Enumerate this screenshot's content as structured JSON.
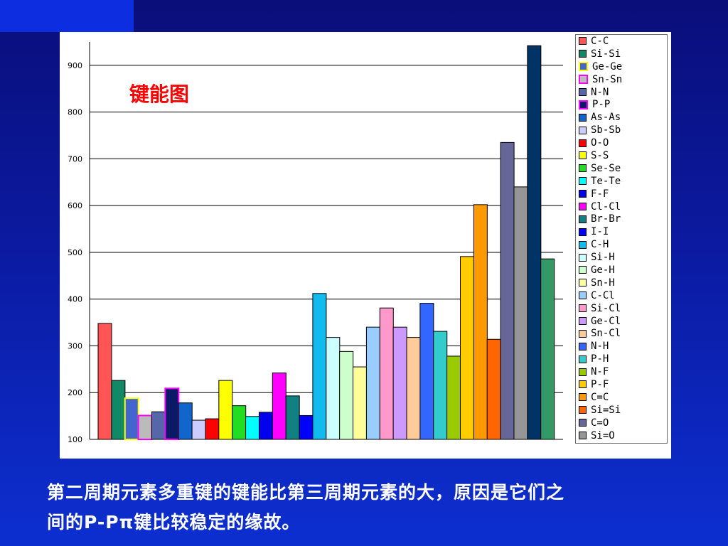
{
  "chart_data": {
    "type": "bar",
    "title": "键能图",
    "ylim": [
      100,
      950
    ],
    "yticks": [
      100,
      200,
      300,
      400,
      500,
      600,
      700,
      800,
      900
    ],
    "grid": true,
    "legend_placement": "right",
    "series": [
      {
        "name": "C-C",
        "value": 348,
        "color": "#ff5555",
        "border": "#000000"
      },
      {
        "name": "Si-Si",
        "value": 226,
        "color": "#118866",
        "border": "#000000"
      },
      {
        "name": "Ge-Ge",
        "value": 188,
        "color": "#4466cc",
        "border": "#ffff00"
      },
      {
        "name": "Sn-Sn",
        "value": 151,
        "color": "#bbbbbb",
        "border": "#ff00ff"
      },
      {
        "name": "N-N",
        "value": 159,
        "color": "#5566aa",
        "border": "#000000"
      },
      {
        "name": "P-P",
        "value": 209,
        "color": "#0a1a66",
        "border": "#ff00ff"
      },
      {
        "name": "As-As",
        "value": 178,
        "color": "#1166cc",
        "border": "#000000"
      },
      {
        "name": "Sb-Sb",
        "value": 141,
        "color": "#ccccff",
        "border": "#000000"
      },
      {
        "name": "O-O",
        "value": 144,
        "color": "#ff0000",
        "border": "#000000"
      },
      {
        "name": "S-S",
        "value": 226,
        "color": "#ffff00",
        "border": "#000000"
      },
      {
        "name": "Se-Se",
        "value": 172,
        "color": "#22dd22",
        "border": "#000000"
      },
      {
        "name": "Te-Te",
        "value": 149,
        "color": "#00ffff",
        "border": "#000000"
      },
      {
        "name": "F-F",
        "value": 158,
        "color": "#0000ee",
        "border": "#000000"
      },
      {
        "name": "Cl-Cl",
        "value": 242,
        "color": "#ff00ff",
        "border": "#000000"
      },
      {
        "name": "Br-Br",
        "value": 193,
        "color": "#118080",
        "border": "#000000"
      },
      {
        "name": "I-I",
        "value": 151,
        "color": "#0000ff",
        "border": "#000000"
      },
      {
        "name": "C-H",
        "value": 412,
        "color": "#11bbee",
        "border": "#000000"
      },
      {
        "name": "Si-H",
        "value": 318,
        "color": "#ccffff",
        "border": "#000000"
      },
      {
        "name": "Ge-H",
        "value": 288,
        "color": "#ccffcc",
        "border": "#000000"
      },
      {
        "name": "Sn-H",
        "value": 255,
        "color": "#ffff99",
        "border": "#000000"
      },
      {
        "name": "C-Cl",
        "value": 340,
        "color": "#99ccff",
        "border": "#000000"
      },
      {
        "name": "Si-Cl",
        "value": 381,
        "color": "#ff99cc",
        "border": "#000000"
      },
      {
        "name": "Ge-Cl",
        "value": 340,
        "color": "#cc99ff",
        "border": "#000000"
      },
      {
        "name": "Sn-Cl",
        "value": 318,
        "color": "#ffcc99",
        "border": "#000000"
      },
      {
        "name": "N-H",
        "value": 391,
        "color": "#3366ff",
        "border": "#000000"
      },
      {
        "name": "P-H",
        "value": 331,
        "color": "#33cccc",
        "border": "#000000"
      },
      {
        "name": "N-F",
        "value": 278,
        "color": "#99cc00",
        "border": "#000000"
      },
      {
        "name": "P-F",
        "value": 491,
        "color": "#ffcc00",
        "border": "#000000"
      },
      {
        "name": "C=C",
        "value": 602,
        "color": "#ff9900",
        "border": "#000000"
      },
      {
        "name": "Si=Si",
        "value": 314,
        "color": "#ff6600",
        "border": "#000000"
      },
      {
        "name": "C=O",
        "value": 735,
        "color": "#666699",
        "border": "#000000"
      },
      {
        "name": "Si=O",
        "value": 640,
        "color": "#969696",
        "border": "#000000"
      },
      {
        "name": "",
        "value": 942,
        "color": "#003366",
        "border": "#000000"
      },
      {
        "name": "",
        "value": 486,
        "color": "#339966",
        "border": "#000000"
      }
    ]
  },
  "caption": {
    "line1": "第二周期元素多重键的键能比第三周期元素的大，原因是它们之",
    "line2": "间的P-Pπ键比较稳定的缘故。"
  }
}
